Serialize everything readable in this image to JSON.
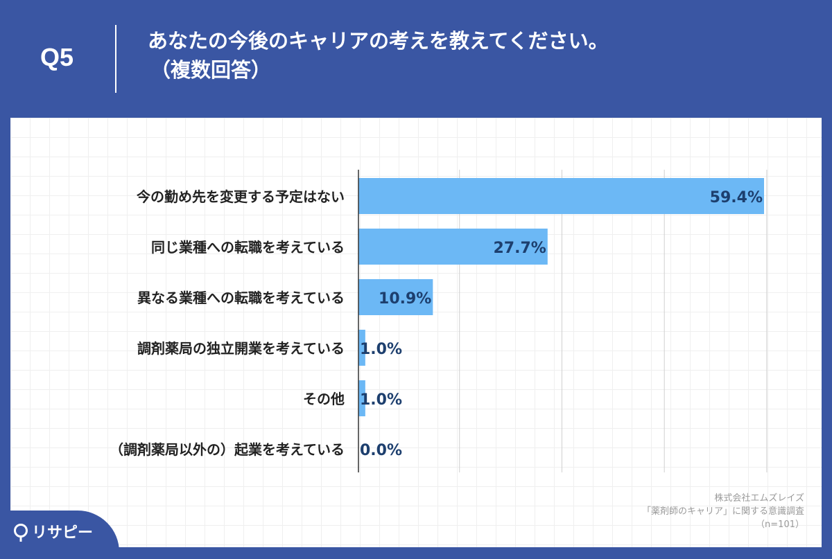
{
  "header": {
    "qnum": "Q5",
    "title_line1": "あなたの今後のキャリアの考えを教えてください。",
    "title_line2": "（複数回答）"
  },
  "chart_data": {
    "type": "bar",
    "orientation": "horizontal",
    "categories": [
      "今の勤め先を変更する予定はない",
      "同じ業種への転職を考えている",
      "異なる業種への転職を考えている",
      "調剤薬局の独立開業を考えている",
      "その他",
      "（調剤薬局以外の）起業を考えている"
    ],
    "values": [
      59.4,
      27.7,
      10.9,
      1.0,
      1.0,
      0.0
    ],
    "value_labels": [
      "59.4%",
      "27.7%",
      "10.9%",
      "1.0%",
      "1.0%",
      "0.0%"
    ],
    "xlim": [
      0,
      60
    ],
    "grid": true,
    "bar_color": "#6cb8f5",
    "label_color": "#1d3f6e"
  },
  "source": {
    "line1": "株式会社エムズレイズ",
    "line2": "「薬剤師のキャリア」に関する意識調査",
    "line3": "（n=101）"
  },
  "brand": {
    "name": "リサピー",
    "colors": {
      "background": "#3a56a3",
      "panel": "#ffffff"
    }
  }
}
